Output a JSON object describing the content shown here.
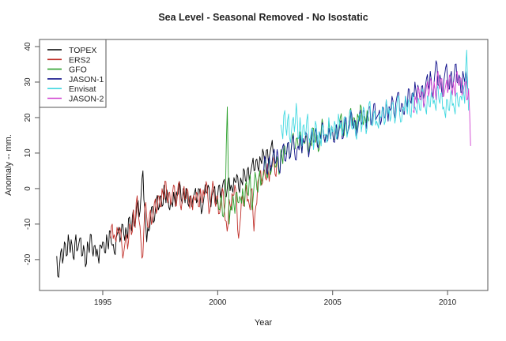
{
  "chart_data": {
    "type": "line",
    "title": "Sea Level - Seasonal Removed - No Isostatic",
    "xlabel": "Year",
    "ylabel": "Anomaly -- mm.",
    "xlim": [
      1992.25,
      2011.75
    ],
    "ylim": [
      -28.7,
      42
    ],
    "xticks": [
      1995,
      2000,
      2005,
      2010
    ],
    "yticks": [
      -20,
      -10,
      0,
      10,
      20,
      30,
      40
    ],
    "grid": false,
    "legend_position": "top-left",
    "series": [
      {
        "name": "TOPEX",
        "color": "#000000",
        "x_start": 1993.0,
        "x_step": 0.0833,
        "values": [
          -19,
          -25,
          -18,
          -21,
          -15,
          -19,
          -13,
          -18,
          -16,
          -20,
          -13,
          -17,
          -14,
          -19,
          -16,
          -22,
          -15,
          -18,
          -13,
          -19,
          -16,
          -17,
          -21,
          -16,
          -15,
          -18,
          -13,
          -17,
          -12,
          -16,
          -18,
          -14,
          -12,
          -15,
          -10,
          -13,
          -11,
          -14,
          -8,
          -12,
          -6,
          -10,
          -4,
          -8,
          -2,
          5,
          -6,
          -15,
          -12,
          -8,
          -5,
          -9,
          -3,
          -6,
          -2,
          -5,
          1,
          -4,
          -2,
          -6,
          -4,
          -1,
          -5,
          -2,
          2,
          -3,
          0,
          -4,
          -1,
          -5,
          -2,
          -3,
          -1,
          -4,
          0,
          -3,
          -6,
          -2,
          -1,
          1,
          -3,
          -2,
          0,
          -4,
          -2,
          1,
          -1,
          2,
          -2,
          0,
          3,
          1,
          -1,
          2,
          4,
          0,
          3,
          1,
          5,
          2,
          6,
          4,
          7,
          5,
          8,
          6,
          9,
          7,
          10,
          8,
          11,
          9,
          12,
          10
        ]
      },
      {
        "name": "ERS2",
        "color": "#c0302a",
        "x_start": 1995.33,
        "x_step": 0.0833,
        "values": [
          -14,
          -10,
          -13,
          -15,
          -12,
          -11,
          -16,
          -18,
          -14,
          -17,
          -10,
          -13,
          -6,
          -11,
          -2,
          -9,
          -15,
          -19,
          -5,
          -8,
          -11,
          -6,
          -9,
          -4,
          -7,
          -2,
          -5,
          0,
          -3,
          2,
          -4,
          -1,
          -3,
          1,
          -5,
          -2,
          2,
          -6,
          -1,
          -3,
          0,
          -4,
          -2,
          -6,
          -3,
          -1,
          -5,
          0,
          -4,
          -2,
          2,
          -3,
          -6,
          -1,
          0,
          -5,
          -2,
          -7,
          -4,
          -1,
          -9,
          -12,
          -3,
          -6,
          -2,
          1,
          -4,
          -14,
          -8,
          -2,
          -5,
          1,
          -3,
          -6,
          0,
          -12,
          -5,
          2,
          4,
          1,
          5,
          3,
          7,
          2,
          6,
          9,
          4,
          8
        ]
      },
      {
        "name": "GFO",
        "color": "#2ca02c",
        "x_start": 2000.0,
        "x_step": 0.0833,
        "values": [
          -3,
          -6,
          -2,
          -8,
          -4,
          23,
          -10,
          -5,
          -2,
          -7,
          -1,
          -4,
          -3,
          0,
          -5,
          2,
          -2,
          4,
          -6,
          1,
          3,
          -1,
          5,
          2,
          4,
          7,
          3,
          8,
          5,
          10,
          6,
          9,
          4,
          11,
          7,
          12,
          10,
          13,
          9,
          15,
          11,
          14,
          12,
          16,
          10,
          13,
          15,
          11,
          14,
          12,
          17,
          13,
          15,
          11,
          16,
          18,
          13,
          15,
          19,
          14,
          16,
          14,
          18,
          15,
          20,
          17,
          15,
          19,
          16,
          22,
          18,
          20,
          17,
          21,
          19,
          23,
          18,
          20,
          22,
          19
        ]
      },
      {
        "name": "JASON-1",
        "color": "#10108a",
        "x_start": 2002.0,
        "x_step": 0.0833,
        "values": [
          5,
          8,
          4,
          9,
          6,
          10,
          7,
          11,
          5,
          9,
          12,
          8,
          10,
          13,
          9,
          14,
          11,
          8,
          12,
          15,
          10,
          13,
          16,
          12,
          11,
          15,
          13,
          17,
          12,
          16,
          14,
          18,
          13,
          15,
          17,
          14,
          16,
          13,
          18,
          15,
          19,
          14,
          17,
          20,
          16,
          18,
          21,
          17,
          19,
          16,
          21,
          18,
          22,
          19,
          20,
          23,
          18,
          21,
          24,
          20,
          21,
          18,
          23,
          20,
          25,
          19,
          22,
          26,
          21,
          24,
          27,
          22,
          24,
          21,
          26,
          23,
          28,
          24,
          27,
          30,
          25,
          28,
          26,
          29,
          27,
          31,
          28,
          33,
          26,
          30,
          36,
          29,
          32,
          27,
          30,
          34,
          31,
          28,
          33,
          29,
          35,
          30,
          32,
          27,
          33,
          30,
          31,
          28
        ]
      },
      {
        "name": "Envisat",
        "color": "#40d8e0",
        "x_start": 2002.75,
        "x_step": 0.0833,
        "values": [
          18,
          14,
          22,
          15,
          21,
          13,
          19,
          16,
          24,
          14,
          20,
          12,
          18,
          15,
          21,
          13,
          17,
          11,
          19,
          14,
          16,
          12,
          18,
          15,
          13,
          20,
          14,
          16,
          19,
          14,
          21,
          17,
          15,
          20,
          18,
          16,
          22,
          17,
          19,
          15,
          18,
          21,
          16,
          23,
          19,
          17,
          24,
          20,
          18,
          22,
          19,
          17,
          20,
          23,
          18,
          25,
          21,
          19,
          24,
          22,
          20,
          26,
          21,
          19,
          23,
          26,
          21,
          24,
          20,
          27,
          23,
          21,
          25,
          22,
          28,
          24,
          21,
          26,
          23,
          28,
          25,
          22,
          29,
          24,
          27,
          23,
          20,
          25,
          22,
          28,
          24,
          21,
          27,
          23,
          26,
          29,
          24,
          39,
          22
        ]
      },
      {
        "name": "JASON-2",
        "color": "#d040d0",
        "x_start": 2008.5,
        "x_step": 0.0833,
        "values": [
          22,
          26,
          24,
          28,
          25,
          27,
          24,
          29,
          26,
          31,
          27,
          30,
          25,
          33,
          28,
          31,
          26,
          29,
          27,
          32,
          28,
          30,
          26,
          33,
          29,
          31,
          27,
          30,
          25,
          28,
          12
        ]
      }
    ]
  }
}
